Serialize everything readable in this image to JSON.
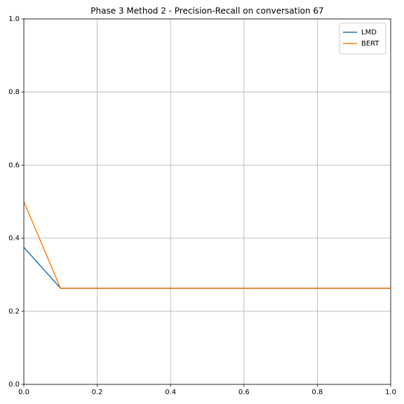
{
  "chart_data": {
    "type": "line",
    "title": "Phase 3 Method 2 - Precision-Recall on conversation 67",
    "x": [
      0,
      0.1,
      0.2,
      0.3,
      0.4,
      0.5,
      0.6,
      0.7,
      0.8,
      0.9,
      1
    ],
    "series": [
      {
        "name": "LMD",
        "color": "#1f77b4",
        "values": [
          0.375,
          0.263,
          0.263,
          0.263,
          0.263,
          0.263,
          0.263,
          0.263,
          0.263,
          0.263,
          0.263
        ]
      },
      {
        "name": "BERT",
        "color": "#ff7f0e",
        "values": [
          0.5,
          0.263,
          0.263,
          0.263,
          0.263,
          0.263,
          0.263,
          0.263,
          0.263,
          0.263,
          0.263
        ]
      }
    ],
    "xlim": [
      0,
      1
    ],
    "ylim": [
      0,
      1
    ],
    "xticks": [
      {
        "value": 0,
        "label": "0.0"
      },
      0.2,
      0.4,
      0.6,
      0.8,
      {
        "value": 1,
        "label": "1.0"
      }
    ],
    "yticks": [
      {
        "value": 0,
        "label": "0.0"
      },
      0.2,
      0.4,
      0.6,
      0.8,
      {
        "value": 1,
        "label": "1.0"
      }
    ],
    "grid": true,
    "legend": "upper right"
  }
}
